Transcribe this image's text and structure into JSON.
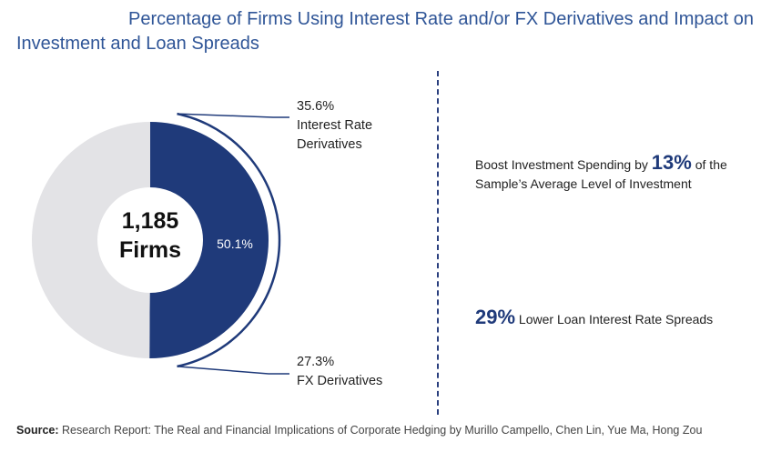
{
  "title": {
    "line1": "Percentage of Firms Using Interest Rate and/or FX Derivatives and Impact on",
    "line2": "Investment and Loan Spreads"
  },
  "chart_data": {
    "type": "pie",
    "center": {
      "line1": "1,185",
      "line2": "Firms"
    },
    "slices": [
      {
        "label": "50.1%",
        "value": 50.1,
        "color": "#1f3a7a"
      },
      {
        "label": "",
        "value": 49.9,
        "color": "#e3e3e6"
      }
    ],
    "callouts": [
      {
        "pct": "35.6%",
        "line1": "Interest Rate",
        "line2": "Derivatives"
      },
      {
        "pct": "27.3%",
        "line1": "FX Derivatives",
        "line2": ""
      }
    ],
    "bracket_color": "#1f3a7a"
  },
  "impacts": {
    "investment": {
      "prefix": "Boost Investment Spending by ",
      "value": "13%",
      "suffix": " of the Sample’s Average Level of Investment"
    },
    "loan": {
      "value": "29%",
      "suffix": " Lower Loan Interest Rate Spreads"
    }
  },
  "source": {
    "label": "Source:",
    "text": " Research Report: The Real and Financial Implications of Corporate Hedging by Murillo Campello, Chen Lin, Yue Ma, Hong Zou"
  }
}
